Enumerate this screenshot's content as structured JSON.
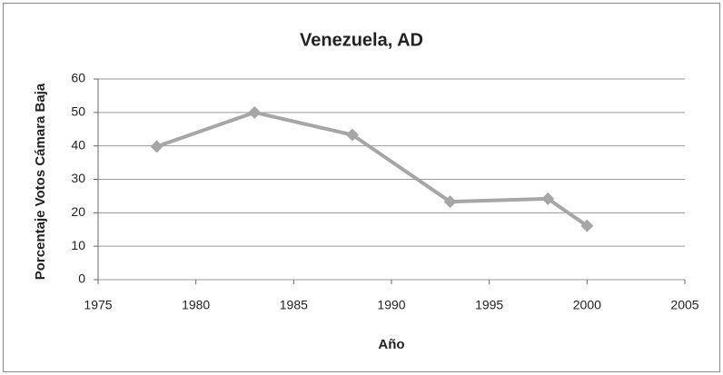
{
  "chart_data": {
    "type": "line",
    "title": "Venezuela, AD",
    "x_label": "Año",
    "y_label": "Porcentaje Votos Cámara Baja",
    "x": [
      1978,
      1983,
      1988,
      1993,
      1998,
      2000
    ],
    "series": [
      {
        "name": "AD",
        "color": "#a6a6a6",
        "values": [
          39.8,
          50,
          43.3,
          23.3,
          24.2,
          16.1
        ]
      }
    ],
    "xlim": [
      1975,
      2005
    ],
    "xticks": [
      1975,
      1980,
      1985,
      1990,
      1995,
      2000,
      2005
    ],
    "ylim": [
      0,
      60
    ],
    "yticks": [
      0,
      10,
      20,
      30,
      40,
      50,
      60
    ],
    "grid": true
  }
}
